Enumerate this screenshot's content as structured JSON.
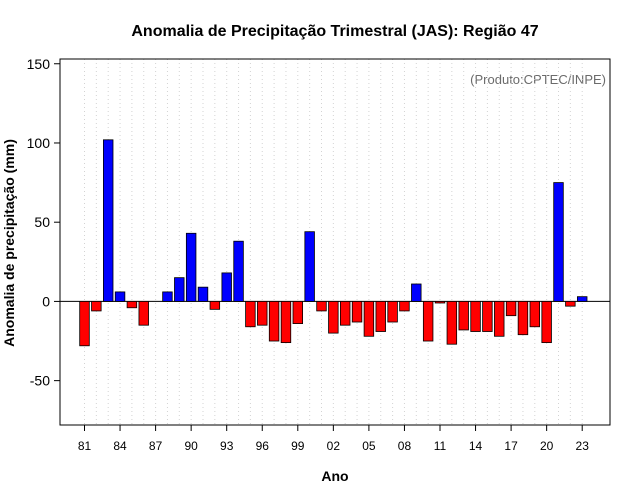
{
  "chart_data": {
    "type": "bar",
    "title": "Anomalia de Precipitação Trimestral (JAS): Região 47",
    "xlabel": "Ano",
    "ylabel": "Anomalia de precipitação (mm)",
    "annotation": "(Produto:CPTEC/INPE)",
    "ylim": [
      -78,
      153
    ],
    "yticks": [
      -50,
      0,
      50,
      100,
      150
    ],
    "grid": "vertical dotted",
    "categories": [
      "81",
      "82",
      "83",
      "84",
      "85",
      "86",
      "87",
      "88",
      "89",
      "90",
      "91",
      "92",
      "93",
      "94",
      "95",
      "96",
      "97",
      "98",
      "99",
      "00",
      "01",
      "02",
      "03",
      "04",
      "05",
      "06",
      "07",
      "08",
      "09",
      "10",
      "11",
      "12",
      "13",
      "14",
      "15",
      "16",
      "17",
      "18",
      "19",
      "20",
      "21",
      "22",
      "23"
    ],
    "xtick_labels": [
      "81",
      "84",
      "87",
      "90",
      "93",
      "96",
      "99",
      "02",
      "05",
      "08",
      "11",
      "14",
      "17",
      "20",
      "23"
    ],
    "values": [
      -28,
      -6,
      102,
      6,
      -4,
      -15,
      0,
      6,
      15,
      43,
      9,
      -5,
      18,
      38,
      -16,
      -15,
      -25,
      -26,
      -14,
      44,
      -6,
      -20,
      -15,
      -13,
      -22,
      -19,
      -13,
      -6,
      11,
      -25,
      -1,
      -27,
      -18,
      -19,
      -19,
      -22,
      -9,
      -21,
      -16,
      -26,
      75,
      -3,
      3
    ],
    "colors": {
      "positive": "#0000ff",
      "negative": "#ff0000",
      "grid": "#d3d3d3",
      "axis": "#000000"
    }
  }
}
